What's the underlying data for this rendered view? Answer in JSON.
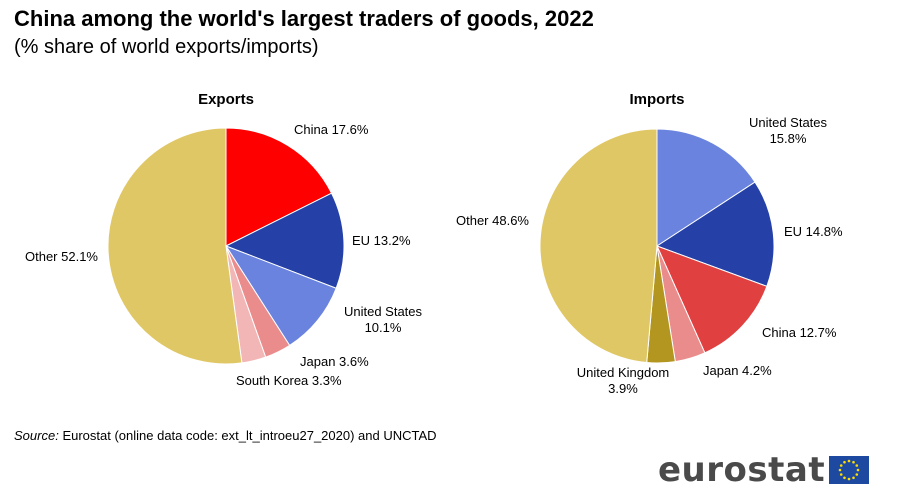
{
  "title": "China among the world's largest traders of goods, 2022",
  "subtitle": "(% share of world exports/imports)",
  "chart_data": [
    {
      "type": "pie",
      "title": "Exports",
      "slices": [
        {
          "label": "China",
          "value": 17.6,
          "display": "China 17.6%",
          "color": "#ff0000"
        },
        {
          "label": "EU",
          "value": 13.2,
          "display": "EU 13.2%",
          "color": "#2541a8"
        },
        {
          "label": "United States",
          "value": 10.1,
          "display": "United States\n10.1%",
          "color": "#6a83df"
        },
        {
          "label": "Japan",
          "value": 3.6,
          "display": "Japan 3.6%",
          "color": "#ea8c8c"
        },
        {
          "label": "South Korea",
          "value": 3.3,
          "display": "South Korea 3.3%",
          "color": "#f2b6b6"
        },
        {
          "label": "Other",
          "value": 52.1,
          "display": "Other 52.1%",
          "color": "#e0c766"
        }
      ]
    },
    {
      "type": "pie",
      "title": "Imports",
      "slices": [
        {
          "label": "United States",
          "value": 15.8,
          "display": "United States\n15.8%",
          "color": "#6a83df"
        },
        {
          "label": "EU",
          "value": 14.8,
          "display": "EU 14.8%",
          "color": "#2541a8"
        },
        {
          "label": "China",
          "value": 12.7,
          "display": "China 12.7%",
          "color": "#e04040"
        },
        {
          "label": "Japan",
          "value": 4.2,
          "display": "Japan 4.2%",
          "color": "#ea8c8c"
        },
        {
          "label": "United Kingdom",
          "value": 3.9,
          "display": "United Kingdom\n3.9%",
          "color": "#b39620"
        },
        {
          "label": "Other",
          "value": 48.6,
          "display": "Other 48.6%",
          "color": "#e0c766"
        }
      ]
    }
  ],
  "source": {
    "label": "Source:",
    "text": "Eurostat (online data code: ext_lt_introeu27_2020) and UNCTAD"
  },
  "logo": {
    "text": "eurostat",
    "flag_color": "#1d4aa0",
    "star_color": "#ffdd00"
  }
}
